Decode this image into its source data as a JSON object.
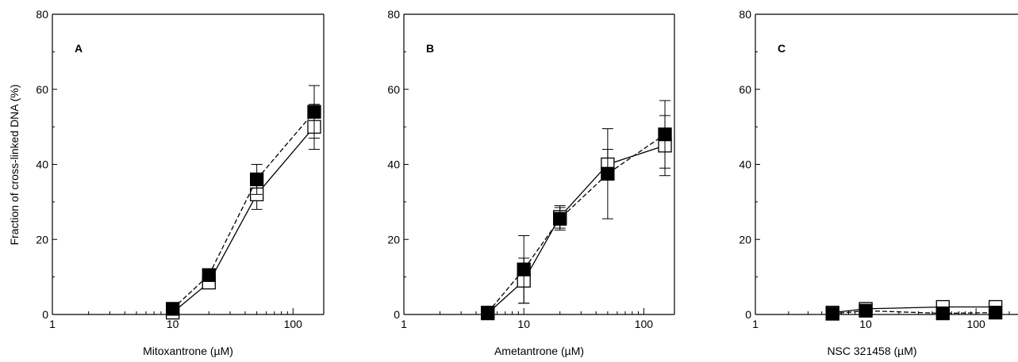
{
  "figure": {
    "ylabel": "Fraction of cross-linked DNA (%)"
  },
  "chart_data": [
    {
      "type": "line",
      "panel": "A",
      "xlabel": "Mitoxantrone (µM)",
      "xscale": "log",
      "xlim": [
        1,
        180
      ],
      "ylim": [
        0,
        80
      ],
      "x_ticks": [
        1,
        10,
        100
      ],
      "y_ticks": [
        0,
        20,
        40,
        60,
        80
      ],
      "grid": false,
      "series": [
        {
          "marker": "filled-square",
          "line": "dashed",
          "x": [
            10,
            20,
            50,
            150
          ],
          "y": [
            1.5,
            10.5,
            36,
            54
          ],
          "err": [
            0,
            0,
            4,
            7
          ]
        },
        {
          "marker": "open-square",
          "line": "solid",
          "x": [
            10,
            20,
            50,
            150
          ],
          "y": [
            0.5,
            8.5,
            32,
            50
          ],
          "err": [
            0,
            0,
            4,
            6
          ]
        }
      ]
    },
    {
      "type": "line",
      "panel": "B",
      "xlabel": "Ametantrone (µM)",
      "xscale": "log",
      "xlim": [
        1,
        180
      ],
      "ylim": [
        0,
        80
      ],
      "x_ticks": [
        1,
        10,
        100
      ],
      "y_ticks": [
        0,
        20,
        40,
        60,
        80
      ],
      "grid": false,
      "series": [
        {
          "marker": "filled-square",
          "line": "dashed",
          "x": [
            5,
            10,
            20,
            50,
            150
          ],
          "y": [
            0.5,
            12,
            25.5,
            37.5,
            48
          ],
          "err": [
            0,
            9,
            3,
            12,
            9
          ]
        },
        {
          "marker": "open-square",
          "line": "solid",
          "x": [
            5,
            10,
            20,
            50,
            150
          ],
          "y": [
            0.3,
            9,
            26,
            40,
            45
          ],
          "err": [
            0,
            6,
            3,
            4,
            8
          ]
        }
      ]
    },
    {
      "type": "line",
      "panel": "C",
      "xlabel": "NSC 321458 (µM)",
      "xscale": "log",
      "xlim": [
        1,
        180
      ],
      "ylim": [
        0,
        80
      ],
      "x_ticks": [
        1,
        10,
        100
      ],
      "y_ticks": [
        0,
        20,
        40,
        60,
        80
      ],
      "grid": false,
      "series": [
        {
          "marker": "filled-square",
          "line": "dashed",
          "x": [
            5,
            10,
            50,
            150
          ],
          "y": [
            0.2,
            1,
            0.3,
            0.5
          ],
          "err": [
            0,
            0,
            0,
            0
          ]
        },
        {
          "marker": "open-square",
          "line": "solid",
          "x": [
            5,
            10,
            50,
            150
          ],
          "y": [
            0.5,
            1.5,
            2,
            2
          ],
          "err": [
            0,
            0,
            0,
            0
          ]
        }
      ]
    }
  ]
}
